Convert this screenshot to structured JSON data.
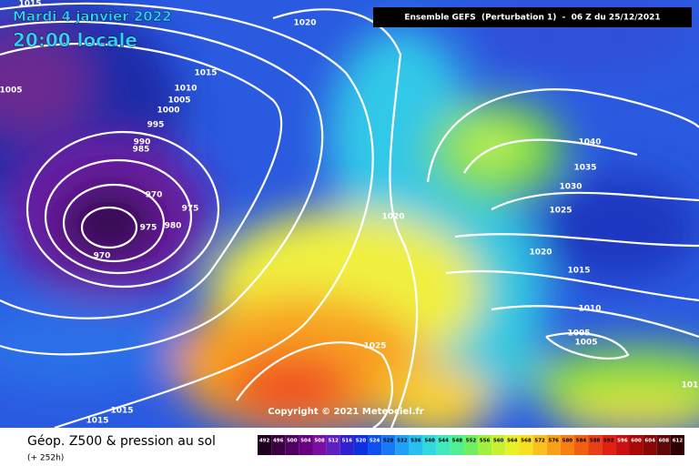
{
  "header": {
    "date": "Mardi 4 janvier 2022",
    "time": "20:00 locale",
    "model": "Ensemble GEFS  (Perturbation 1)  -  06 Z du 25/12/2021"
  },
  "isobar_labels": [
    "1015",
    "1020",
    "1005",
    "1015",
    "1010",
    "1005",
    "1000",
    "995",
    "990",
    "985",
    "970",
    "975",
    "975",
    "980",
    "970",
    "1020",
    "1040",
    "1035",
    "1030",
    "1025",
    "1020",
    "1015",
    "1010",
    "1005",
    "1005",
    "1025",
    "1015",
    "1015",
    "101"
  ],
  "copyright": "Copyright © 2021 Meteociel.fr",
  "footer": {
    "title": "Géop. Z500 & pression au sol",
    "lead": "(+ 252h)"
  },
  "scale": {
    "labels": [
      492,
      496,
      500,
      504,
      508,
      512,
      516,
      520,
      524,
      528,
      532,
      536,
      540,
      544,
      548,
      552,
      556,
      560,
      564,
      568,
      572,
      576,
      580,
      584,
      588,
      592,
      596,
      600,
      604,
      608,
      612
    ]
  }
}
